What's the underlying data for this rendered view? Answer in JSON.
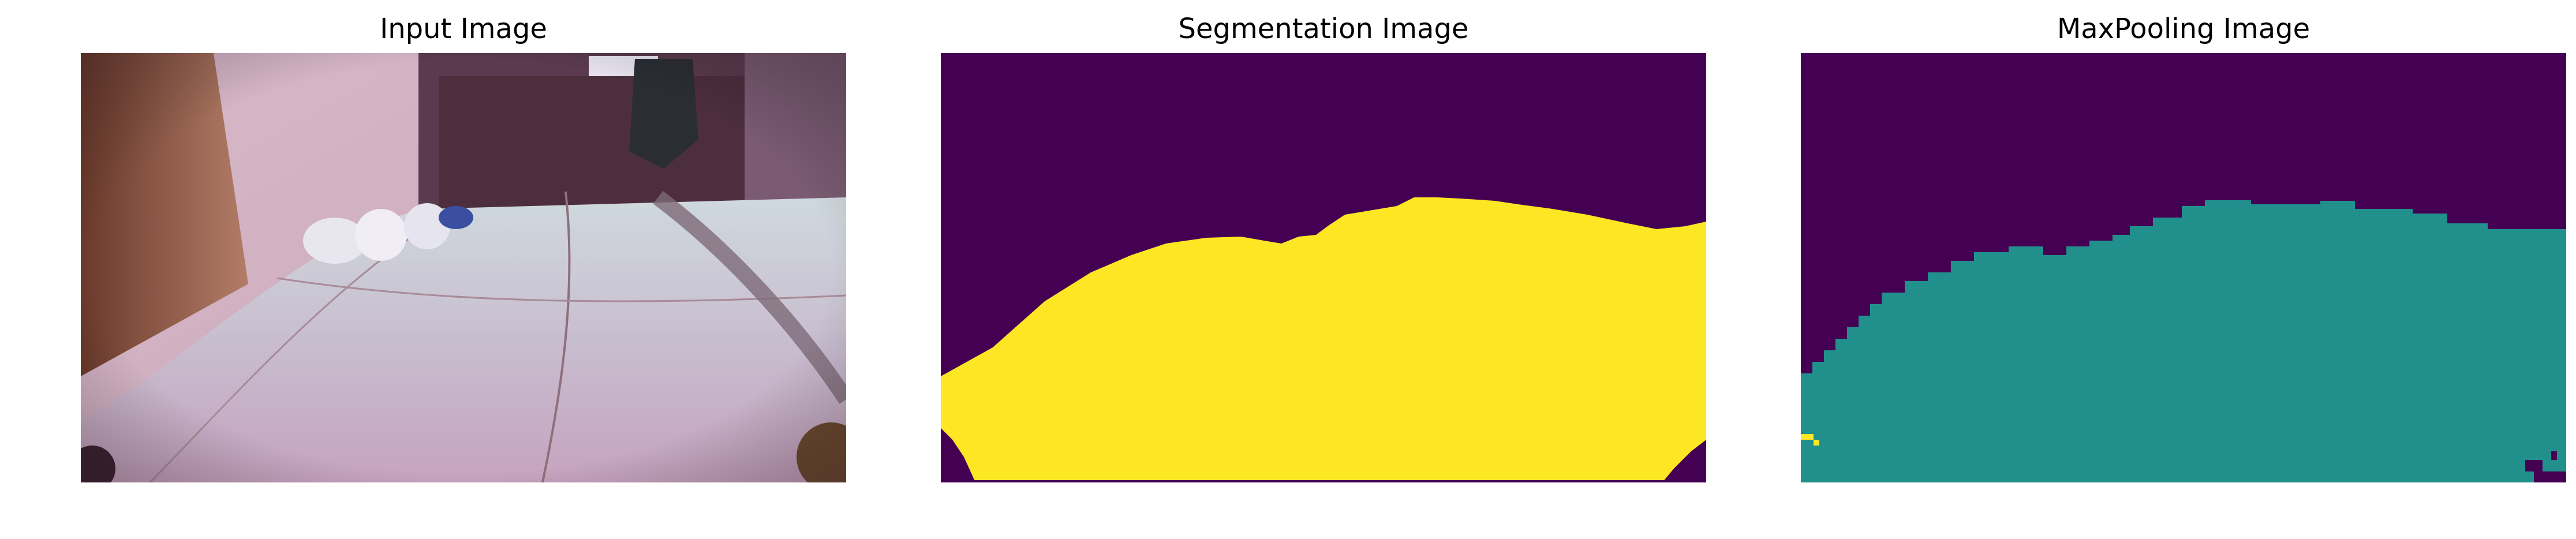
{
  "panels": [
    {
      "title": "Input Image",
      "kind": "photo"
    },
    {
      "title": "Segmentation Image",
      "kind": "segmentation"
    },
    {
      "title": "MaxPooling Image",
      "kind": "maxpool"
    }
  ],
  "colors": {
    "viridis_dark": "#440154",
    "viridis_teal": "#21908d",
    "viridis_yellow": "#fde725"
  }
}
